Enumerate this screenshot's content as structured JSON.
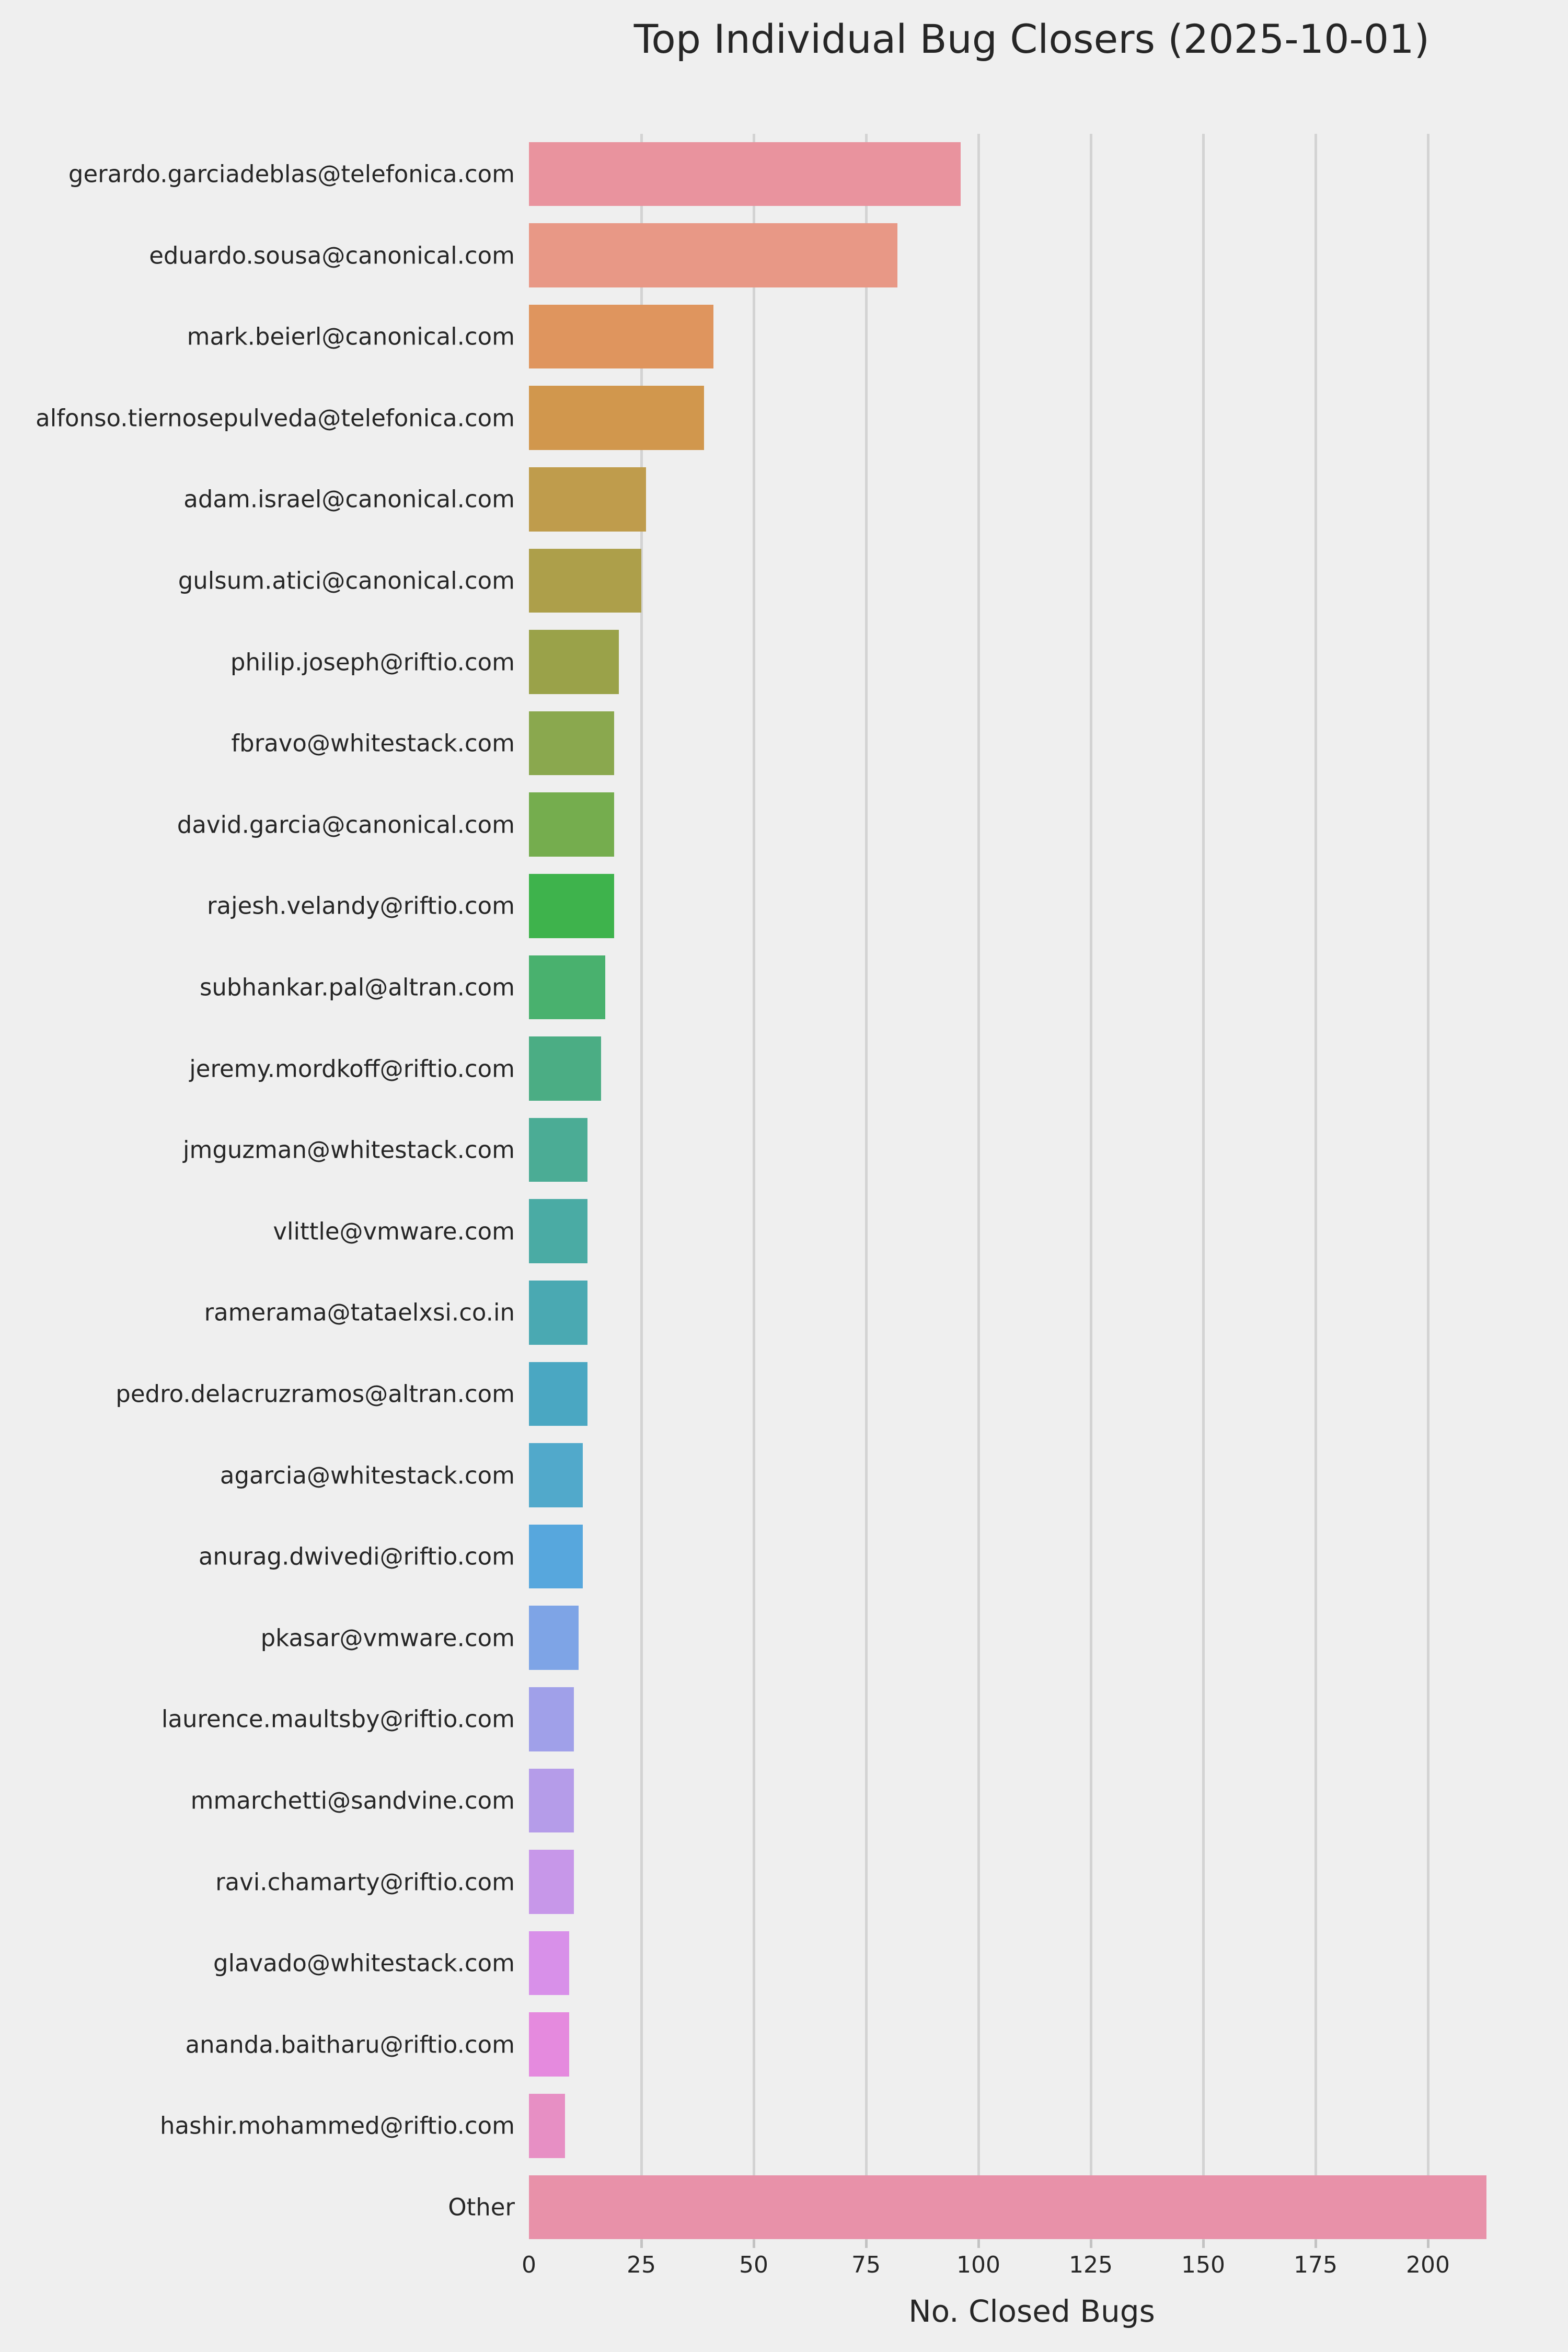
{
  "figure": {
    "background_color": "#efefef",
    "text_color": "#262626",
    "grid_color": "#d3d3d3",
    "tick_color": "#c3c3c3"
  },
  "chart_data": {
    "type": "bar",
    "orientation": "horizontal",
    "title": "Top Individual Bug Closers (2025-10-01)",
    "xlabel": "No. Closed Bugs",
    "ylabel": "",
    "grid": true,
    "legend": false,
    "xlim": [
      0,
      223.6
    ],
    "x_ticks": [
      0,
      25,
      50,
      75,
      100,
      125,
      150,
      175,
      200
    ],
    "categories": [
      "gerardo.garciadeblas@telefonica.com",
      "eduardo.sousa@canonical.com",
      "mark.beierl@canonical.com",
      "alfonso.tiernosepulveda@telefonica.com",
      "adam.israel@canonical.com",
      "gulsum.atici@canonical.com",
      "philip.joseph@riftio.com",
      "fbravo@whitestack.com",
      "david.garcia@canonical.com",
      "rajesh.velandy@riftio.com",
      "subhankar.pal@altran.com",
      "jeremy.mordkoff@riftio.com",
      "jmguzman@whitestack.com",
      "vlittle@vmware.com",
      "ramerama@tataelxsi.co.in",
      "pedro.delacruzramos@altran.com",
      "agarcia@whitestack.com",
      "anurag.dwivedi@riftio.com",
      "pkasar@vmware.com",
      "laurence.maultsby@riftio.com",
      "mmarchetti@sandvine.com",
      "ravi.chamarty@riftio.com",
      "glavado@whitestack.com",
      "ananda.baitharu@riftio.com",
      "hashir.mohammed@riftio.com",
      "Other"
    ],
    "values": [
      96,
      82,
      41,
      39,
      26,
      25,
      20,
      19,
      19,
      19,
      17,
      16,
      13,
      13,
      13,
      13,
      12,
      12,
      11,
      10,
      10,
      10,
      9,
      9,
      8,
      213
    ],
    "bar_colors": [
      "#e9939e",
      "#e89886",
      "#df955e",
      "#d1974d",
      "#bf9c4c",
      "#ad9f4a",
      "#9aa249",
      "#8aa84e",
      "#75ad4e",
      "#3eb34c",
      "#49b16e",
      "#4bad84",
      "#4bac95",
      "#4aaba4",
      "#4aa9b2",
      "#4aa7c2",
      "#51a9cb",
      "#57a7dd",
      "#7ea4e6",
      "#a0a0e9",
      "#b59ce9",
      "#c797e9",
      "#d890e9",
      "#e58ade",
      "#e78fc4",
      "#e891a9"
    ]
  }
}
